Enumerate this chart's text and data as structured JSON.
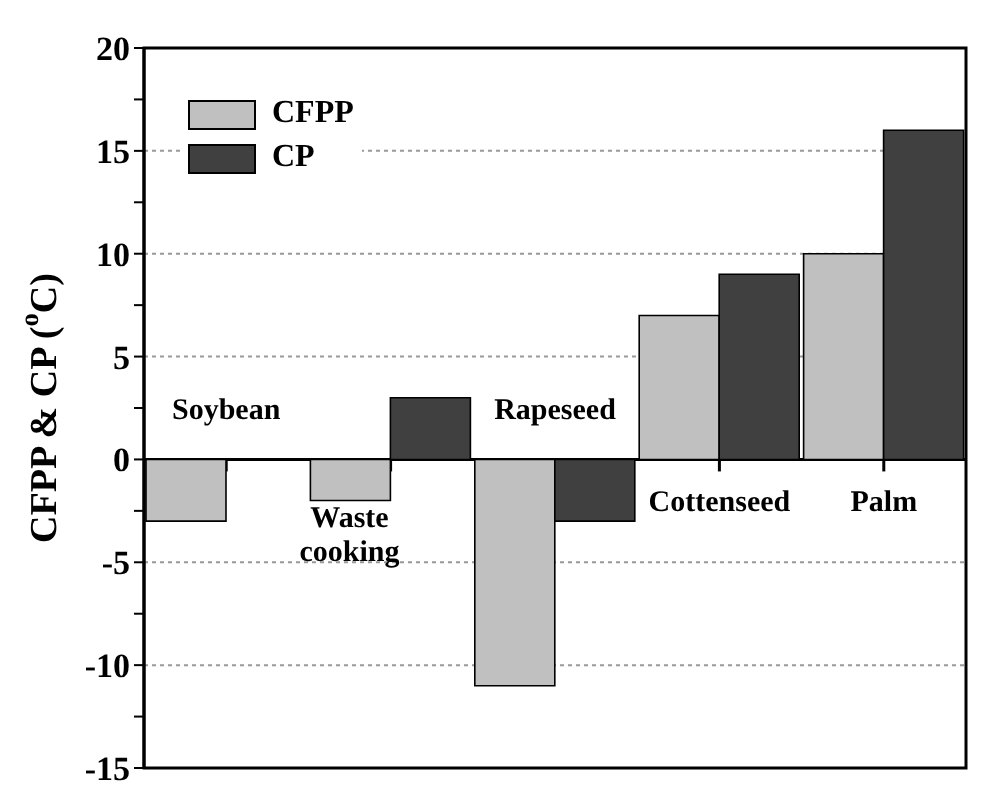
{
  "chart_data": {
    "type": "bar",
    "ylabel": "CFPP & CP ($^{o}$C)",
    "categories": [
      "Soybean",
      "Waste cooking",
      "Rapeseed",
      "Cottenseed",
      "Palm"
    ],
    "series": [
      {
        "name": "CFPP",
        "color": "#c0c0c0",
        "values": [
          -3,
          -2,
          -11,
          7,
          10
        ]
      },
      {
        "name": "CP",
        "color": "#404040",
        "values": [
          0,
          3,
          -3,
          9,
          16
        ]
      }
    ],
    "ylim": [
      -15,
      20
    ],
    "yticks": [
      -15,
      {
        "value": -12.5,
        "label": null
      },
      -10,
      {
        "value": -7.5,
        "label": null
      },
      -5,
      {
        "value": -2.5,
        "label": null
      },
      0,
      {
        "value": 2.5,
        "label": null
      },
      5,
      {
        "value": 7.5,
        "label": null
      },
      10,
      {
        "value": 12.5,
        "label": null
      },
      15,
      {
        "value": 17.5,
        "label": null
      },
      20
    ],
    "grid": "y",
    "legend": "top left"
  }
}
